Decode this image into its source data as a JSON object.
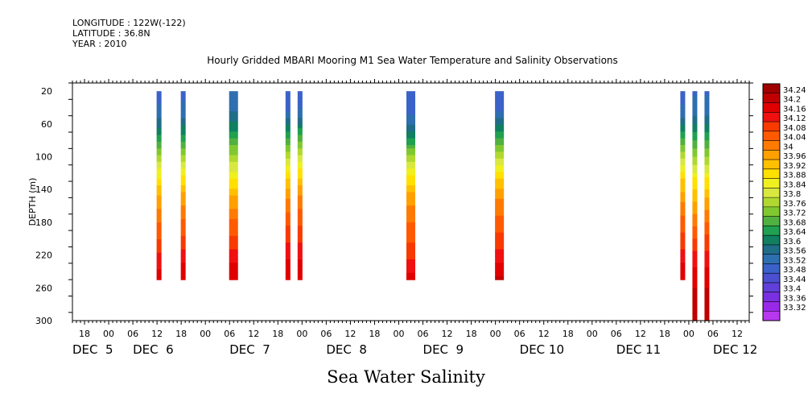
{
  "header": {
    "longitude": "LONGITUDE : 122W(-122)",
    "latitude": "LATITUDE : 36.8N",
    "year": "YEAR : 2010"
  },
  "chart_data": {
    "type": "heatmap",
    "title": "Hourly Gridded MBARI Mooring M1 Sea Water Temperature and Salinity Observations",
    "ylabel": "DEPTH (m)",
    "xlabel": "Sea Water Salinity",
    "ylim": [
      300,
      10
    ],
    "y_ticks": [
      20,
      60,
      100,
      140,
      180,
      220,
      260,
      300
    ],
    "x_hour_ticks": [
      {
        "t": -6,
        "label": "18"
      },
      {
        "t": 0,
        "label": "00"
      },
      {
        "t": 6,
        "label": "06"
      },
      {
        "t": 12,
        "label": "12"
      },
      {
        "t": 18,
        "label": "18"
      },
      {
        "t": 24,
        "label": "00"
      },
      {
        "t": 30,
        "label": "06"
      },
      {
        "t": 36,
        "label": "12"
      },
      {
        "t": 42,
        "label": "18"
      },
      {
        "t": 48,
        "label": "00"
      },
      {
        "t": 54,
        "label": "06"
      },
      {
        "t": 60,
        "label": "12"
      },
      {
        "t": 66,
        "label": "18"
      },
      {
        "t": 72,
        "label": "00"
      },
      {
        "t": 78,
        "label": "06"
      },
      {
        "t": 84,
        "label": "12"
      },
      {
        "t": 90,
        "label": "18"
      },
      {
        "t": 96,
        "label": "00"
      },
      {
        "t": 102,
        "label": "06"
      },
      {
        "t": 108,
        "label": "12"
      },
      {
        "t": 114,
        "label": "18"
      },
      {
        "t": 120,
        "label": "00"
      },
      {
        "t": 126,
        "label": "06"
      },
      {
        "t": 132,
        "label": "12"
      },
      {
        "t": 138,
        "label": "18"
      },
      {
        "t": 144,
        "label": "00"
      },
      {
        "t": 150,
        "label": "06"
      },
      {
        "t": 156,
        "label": "12"
      }
    ],
    "x_day_labels": [
      {
        "t": -9,
        "label": "DEC  5"
      },
      {
        "t": 6,
        "label": "DEC  6"
      },
      {
        "t": 30,
        "label": "DEC  7"
      },
      {
        "t": 54,
        "label": "DEC  8"
      },
      {
        "t": 78,
        "label": "DEC  9"
      },
      {
        "t": 102,
        "label": "DEC 10"
      },
      {
        "t": 126,
        "label": "DEC 11"
      },
      {
        "t": 150,
        "label": "DEC 12"
      }
    ],
    "profiles": [
      {
        "t_start": 11.9,
        "t_end": 13.1,
        "depth_max": 250,
        "values": [
          33.5,
          33.53,
          33.62,
          33.75,
          33.87,
          33.96,
          34.02,
          34.08,
          34.14,
          34.18
        ]
      },
      {
        "t_start": 17.9,
        "t_end": 19.1,
        "depth_max": 250,
        "values": [
          33.5,
          33.54,
          33.63,
          33.76,
          33.88,
          33.97,
          34.03,
          34.09,
          34.15,
          34.19
        ]
      },
      {
        "t_start": 29.9,
        "t_end": 32.1,
        "depth_max": 250,
        "values": [
          33.52,
          33.56,
          33.65,
          33.76,
          33.86,
          33.96,
          34.03,
          34.09,
          34.15,
          34.2
        ]
      },
      {
        "t_start": 43.9,
        "t_end": 45.1,
        "depth_max": 250,
        "values": [
          33.48,
          33.52,
          33.64,
          33.78,
          33.9,
          33.99,
          34.05,
          34.11,
          34.16,
          34.2
        ]
      },
      {
        "t_start": 46.9,
        "t_end": 48.1,
        "depth_max": 250,
        "values": [
          33.49,
          33.53,
          33.66,
          33.8,
          33.91,
          34.0,
          34.06,
          34.11,
          34.16,
          34.19
        ]
      },
      {
        "t_start": 73.9,
        "t_end": 76.1,
        "depth_max": 250,
        "values": [
          33.48,
          33.51,
          33.6,
          33.76,
          33.88,
          33.97,
          34.03,
          34.07,
          34.12,
          34.18
        ]
      },
      {
        "t_start": 95.9,
        "t_end": 98.1,
        "depth_max": 250,
        "values": [
          33.48,
          33.52,
          33.64,
          33.78,
          33.9,
          33.99,
          34.04,
          34.09,
          34.15,
          34.21
        ]
      },
      {
        "t_start": 141.9,
        "t_end": 143.1,
        "depth_max": 250,
        "values": [
          33.5,
          33.53,
          33.64,
          33.78,
          33.9,
          33.98,
          34.04,
          34.09,
          34.15,
          34.19
        ]
      },
      {
        "t_start": 144.9,
        "t_end": 146.1,
        "depth_max": 300,
        "values": [
          33.51,
          33.55,
          33.66,
          33.78,
          33.9,
          33.98,
          34.05,
          34.12,
          34.18,
          34.22,
          34.23
        ]
      },
      {
        "t_start": 147.9,
        "t_end": 149.1,
        "depth_max": 300,
        "values": [
          33.51,
          33.55,
          33.66,
          33.78,
          33.9,
          33.99,
          34.06,
          34.12,
          34.18,
          34.22,
          34.23
        ]
      }
    ],
    "colorbar": {
      "levels": [
        "34.24",
        "34.2",
        "34.16",
        "34.12",
        "34.08",
        "34.04",
        "34",
        "33.96",
        "33.92",
        "33.88",
        "33.84",
        "33.8",
        "33.76",
        "33.72",
        "33.68",
        "33.64",
        "33.6",
        "33.56",
        "33.52",
        "33.48",
        "33.44",
        "33.4",
        "33.36",
        "33.32"
      ],
      "colors": [
        "#a00000",
        "#c00000",
        "#e00000",
        "#f01010",
        "#f83a00",
        "#ff5a00",
        "#ff7a00",
        "#ffa000",
        "#ffc000",
        "#ffe000",
        "#f0f020",
        "#d8e840",
        "#b0d830",
        "#80c830",
        "#50b040",
        "#20a050",
        "#108060",
        "#206d88",
        "#2e6fb0",
        "#3a62c8",
        "#4a50d0",
        "#6040d8",
        "#7a30e0",
        "#9a28e8",
        "#b838f0"
      ]
    }
  }
}
